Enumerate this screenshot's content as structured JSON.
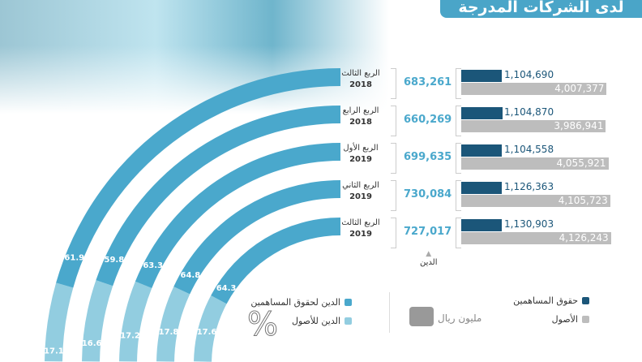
{
  "title": "لدى الشركات المدرجة",
  "chart_data": {
    "type": "bar",
    "unit": "مليون ريال",
    "categories": [
      {
        "q": "الربع الثالث",
        "y": "2018"
      },
      {
        "q": "الربع الرابع",
        "y": "2018"
      },
      {
        "q": "الربع الأول",
        "y": "2019"
      },
      {
        "q": "الربع الثاني",
        "y": "2019"
      },
      {
        "q": "الربع الثالث",
        "y": "2019"
      }
    ],
    "debt": [
      "683,261",
      "660,269",
      "699,635",
      "730,084",
      "727,017"
    ],
    "equity": [
      "1,104,690",
      "1,104,870",
      "1,104,558",
      "1,126,363",
      "1,130,903"
    ],
    "assets": [
      "4,007,377",
      "3,986,941",
      "4,055,921",
      "4,105,723",
      "4,126,243"
    ],
    "debt_to_equity_pct": [
      "61.9",
      "59.8",
      "63.3",
      "64.8",
      "64.3"
    ],
    "debt_to_assets_pct": [
      "17.1",
      "16.6",
      "17.2",
      "17.8",
      "17.6"
    ],
    "debt_axis_label": "الدين"
  },
  "legend": {
    "equity": "حقوق المساهمين",
    "assets": "الأصول",
    "unit": "مليون ريال",
    "debt_equity": "الدين لحقوق المساهمين",
    "debt_assets": "الدين للأصول",
    "percent": "%"
  },
  "colors": {
    "equity": "#1b5679",
    "assets": "#bdbdbd",
    "debt_equity": "#4aa8cc",
    "debt_assets": "#92cde0"
  }
}
